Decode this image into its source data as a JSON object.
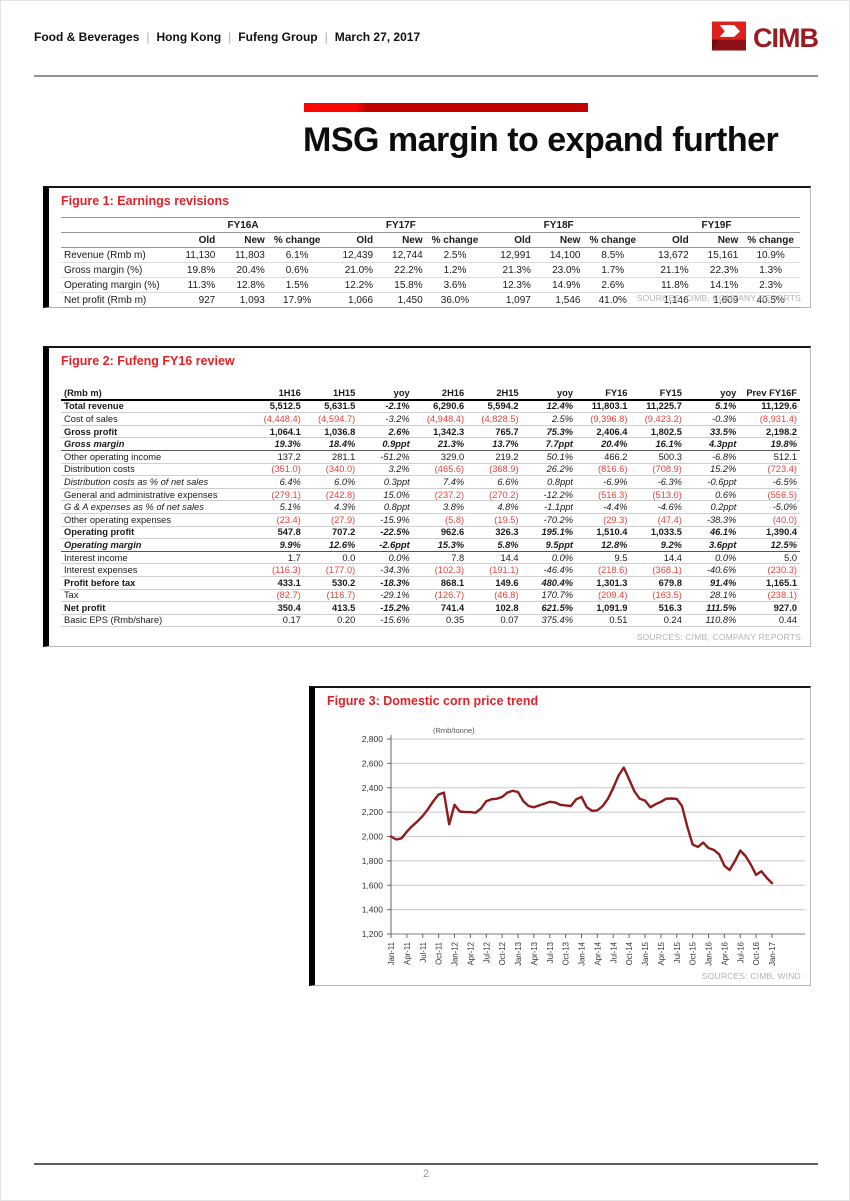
{
  "header": {
    "segments": [
      "Food & Beverages",
      "Hong Kong",
      "Fufeng Group",
      "March 27, 2017"
    ],
    "logo_text": "CIMB",
    "brand_dark_red": "#9a1b22",
    "brand_bright_red": "#e0201b",
    "brand_maroon": "#8a1216"
  },
  "title": {
    "text": "MSG margin to expand further"
  },
  "figure1": {
    "title": "Figure 1: Earnings revisions",
    "group_headers": [
      "FY16A",
      "FY17F",
      "FY18F",
      "FY19F"
    ],
    "sub_headers": [
      "Old",
      "New",
      "% change"
    ],
    "rows": [
      {
        "label": "Revenue (Rmb m)",
        "values": [
          "11,130",
          "11,803",
          "6.1%",
          "12,439",
          "12,744",
          "2.5%",
          "12,991",
          "14,100",
          "8.5%",
          "13,672",
          "15,161",
          "10.9%"
        ]
      },
      {
        "label": "Gross margin (%)",
        "values": [
          "19.8%",
          "20.4%",
          "0.6%",
          "21.0%",
          "22.2%",
          "1.2%",
          "21.3%",
          "23.0%",
          "1.7%",
          "21.1%",
          "22.3%",
          "1.3%"
        ]
      },
      {
        "label": "Operating margin (%)",
        "values": [
          "11.3%",
          "12.8%",
          "1.5%",
          "12.2%",
          "15.8%",
          "3.6%",
          "12.3%",
          "14.9%",
          "2.6%",
          "11.8%",
          "14.1%",
          "2.3%"
        ]
      },
      {
        "label": "Net profit (Rmb m)",
        "values": [
          "927",
          "1,093",
          "17.9%",
          "1,066",
          "1,450",
          "36.0%",
          "1,097",
          "1,546",
          "41.0%",
          "1,146",
          "1,609",
          "40.5%"
        ]
      }
    ],
    "source": "SOURCES: CIMB, COMPANY REPORTS"
  },
  "figure2": {
    "title": "Figure 2: Fufeng FY16 review",
    "headers": [
      "(Rmb m)",
      "1H16",
      "1H15",
      "yoy",
      "2H16",
      "2H15",
      "yoy",
      "FY16",
      "FY15",
      "yoy",
      "Prev FY16F"
    ],
    "rows": [
      {
        "label": "Total revenue",
        "style": "bold",
        "values": [
          "5,512.5",
          "5,631.5",
          "-2.1%",
          "6,290.6",
          "5,594.2",
          "12.4%",
          "11,803.1",
          "11,225.7",
          "5.1%",
          "11,129.6"
        ]
      },
      {
        "label": "Cost of sales",
        "style": "normal",
        "values": [
          "(4,448.4)",
          "(4,594.7)",
          "-3.2%",
          "(4,948.4)",
          "(4,828.5)",
          "2.5%",
          "(9,396.8)",
          "(9,423.2)",
          "-0.3%",
          "(8,931.4)"
        ]
      },
      {
        "label": "Gross profit",
        "style": "bold",
        "top_divider": true,
        "values": [
          "1,064.1",
          "1,036.8",
          "2.6%",
          "1,342.3",
          "765.7",
          "75.3%",
          "2,406.4",
          "1,802.5",
          "33.5%",
          "2,198.2"
        ]
      },
      {
        "label": "Gross margin",
        "style": "bold-italic",
        "bottom_divider": true,
        "values": [
          "19.3%",
          "18.4%",
          "0.9ppt",
          "21.3%",
          "13.7%",
          "7.7ppt",
          "20.4%",
          "16.1%",
          "4.3ppt",
          "19.8%"
        ]
      },
      {
        "label": "Other operating income",
        "style": "normal",
        "values": [
          "137.2",
          "281.1",
          "-51.2%",
          "329.0",
          "219.2",
          "50.1%",
          "466.2",
          "500.3",
          "-6.8%",
          "512.1"
        ]
      },
      {
        "label": "Distribution costs",
        "style": "normal",
        "values": [
          "(351.0)",
          "(340.0)",
          "3.2%",
          "(465.6)",
          "(368.9)",
          "26.2%",
          "(816.6)",
          "(708.9)",
          "15.2%",
          "(723.4)"
        ]
      },
      {
        "label": "Distribution costs as % of net sales",
        "style": "italic",
        "values": [
          "6.4%",
          "6.0%",
          "0.3ppt",
          "7.4%",
          "6.6%",
          "0.8ppt",
          "-6.9%",
          "-6.3%",
          "-0.6ppt",
          "-6.5%"
        ]
      },
      {
        "label": "General and administrative expenses",
        "style": "normal",
        "values": [
          "(279.1)",
          "(242.8)",
          "15.0%",
          "(237.2)",
          "(270.2)",
          "-12.2%",
          "(516.3)",
          "(513.0)",
          "0.6%",
          "(556.5)"
        ]
      },
      {
        "label": "G & A expenses as % of net sales",
        "style": "italic",
        "values": [
          "5.1%",
          "4.3%",
          "0.8ppt",
          "3.8%",
          "4.8%",
          "-1.1ppt",
          "-4.4%",
          "-4.6%",
          "0.2ppt",
          "-5.0%"
        ]
      },
      {
        "label": "Other operating expenses",
        "style": "normal",
        "values": [
          "(23.4)",
          "(27.9)",
          "-15.9%",
          "(5.8)",
          "(19.5)",
          "-70.2%",
          "(29.3)",
          "(47.4)",
          "-38.3%",
          "(40.0)"
        ]
      },
      {
        "label": "Operating profit",
        "style": "bold",
        "top_divider": true,
        "values": [
          "547.8",
          "707.2",
          "-22.5%",
          "962.6",
          "326.3",
          "195.1%",
          "1,510.4",
          "1,033.5",
          "46.1%",
          "1,390.4"
        ]
      },
      {
        "label": "Operating margin",
        "style": "bold-italic",
        "bottom_divider": true,
        "values": [
          "9.9%",
          "12.6%",
          "-2.6ppt",
          "15.3%",
          "5.8%",
          "9.5ppt",
          "12.8%",
          "9.2%",
          "3.6ppt",
          "12.5%"
        ]
      },
      {
        "label": "Interest income",
        "style": "normal",
        "values": [
          "1.7",
          "0.0",
          "0.0%",
          "7.8",
          "14.4",
          "0.0%",
          "9.5",
          "14.4",
          "0.0%",
          "5.0"
        ]
      },
      {
        "label": "Interest expenses",
        "style": "normal",
        "values": [
          "(116.3)",
          "(177.0)",
          "-34.3%",
          "(102.3)",
          "(191.1)",
          "-46.4%",
          "(218.6)",
          "(368.1)",
          "-40.6%",
          "(230.3)"
        ]
      },
      {
        "label": "Profit before tax",
        "style": "bold",
        "top_divider": true,
        "values": [
          "433.1",
          "530.2",
          "-18.3%",
          "868.1",
          "149.6",
          "480.4%",
          "1,301.3",
          "679.8",
          "91.4%",
          "1,165.1"
        ]
      },
      {
        "label": "Tax",
        "style": "normal",
        "values": [
          "(82.7)",
          "(116.7)",
          "-29.1%",
          "(126.7)",
          "(46.8)",
          "170.7%",
          "(209.4)",
          "(163.5)",
          "28.1%",
          "(238.1)"
        ]
      },
      {
        "label": "Net profit",
        "style": "bold",
        "top_divider": true,
        "values": [
          "350.4",
          "413.5",
          "-15.2%",
          "741.4",
          "102.8",
          "621.5%",
          "1,091.9",
          "516.3",
          "111.5%",
          "927.0"
        ]
      },
      {
        "label": "Basic EPS (Rmb/share)",
        "style": "normal",
        "values": [
          "0.17",
          "0.20",
          "-15.6%",
          "0.35",
          "0.07",
          "375.4%",
          "0.51",
          "0.24",
          "110.8%",
          "0.44"
        ]
      }
    ],
    "source": "SOURCES: CIMB, COMPANY REPORTS"
  },
  "figure3": {
    "title": "Figure 3: Domestic corn price trend",
    "source": "SOURCES: CIMB, WIND",
    "chart_data": {
      "type": "line",
      "title": "Domestic corn price trend",
      "unit_label": "(Rmb/tonne)",
      "ylim": [
        1200,
        2800
      ],
      "y_tick_step": 200,
      "x_frequency": "monthly",
      "x_start": "Jan-11",
      "x_end": "Jan-17",
      "x_tick_labels": [
        "Jan-11",
        "Apr-11",
        "Jul-11",
        "Oct-11",
        "Jan-12",
        "Apr-12",
        "Jul-12",
        "Oct-12",
        "Jan-13",
        "Apr-13",
        "Jul-13",
        "Oct-13",
        "Jan-14",
        "Apr-14",
        "Jul-14",
        "Oct-14",
        "Jan-15",
        "Apr-15",
        "Jul-15",
        "Oct-15",
        "Jan-16",
        "Apr-16",
        "Jul-16",
        "Oct-16",
        "Jan-17"
      ],
      "x_ticks_every_n_months": 3,
      "values": [
        2000,
        1975,
        1985,
        2040,
        2085,
        2125,
        2170,
        2225,
        2290,
        2345,
        2360,
        2100,
        2260,
        2205,
        2200,
        2200,
        2195,
        2230,
        2290,
        2305,
        2310,
        2325,
        2360,
        2375,
        2365,
        2290,
        2250,
        2240,
        2255,
        2270,
        2285,
        2280,
        2260,
        2255,
        2250,
        2305,
        2325,
        2240,
        2210,
        2215,
        2250,
        2310,
        2400,
        2500,
        2565,
        2470,
        2370,
        2310,
        2295,
        2240,
        2265,
        2285,
        2310,
        2312,
        2308,
        2250,
        2080,
        1935,
        1915,
        1950,
        1905,
        1890,
        1855,
        1760,
        1725,
        1800,
        1885,
        1840,
        1770,
        1685,
        1715,
        1660,
        1618
      ],
      "line_color": "#8e1c1c",
      "grid": true,
      "legend": false
    }
  },
  "footer": {
    "page_number": "2"
  }
}
